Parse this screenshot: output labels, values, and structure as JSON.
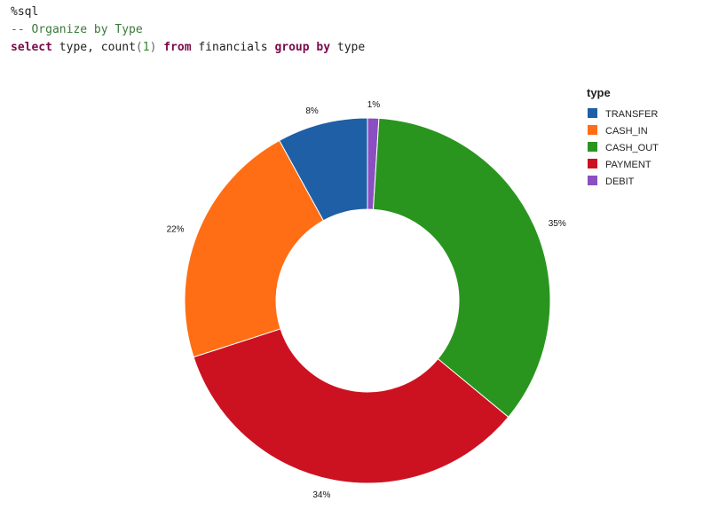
{
  "cell": {
    "magic": "%sql",
    "comment": "-- Organize by Type",
    "kw_select": "select",
    "col_type": " type, ",
    "fn_count": "count",
    "paren_open": "(",
    "count_arg": "1",
    "paren_close": ")",
    "kw_from": " from",
    "table": " financials ",
    "kw_group": "group",
    "kw_by": " by",
    "group_col": " type"
  },
  "chart_data": {
    "type": "pie",
    "donut": true,
    "legend_title": "type",
    "legend_position": "top-right",
    "categories": [
      "TRANSFER",
      "CASH_IN",
      "CASH_OUT",
      "PAYMENT",
      "DEBIT"
    ],
    "values": [
      8,
      22,
      35,
      34,
      1
    ],
    "labels": [
      "8%",
      "22%",
      "35%",
      "34%",
      "1%"
    ],
    "colors": [
      "#1f5fa5",
      "#ff6e14",
      "#29951f",
      "#cc1221",
      "#8a4fc1"
    ],
    "draw_order": [
      4,
      2,
      3,
      1,
      0
    ]
  }
}
